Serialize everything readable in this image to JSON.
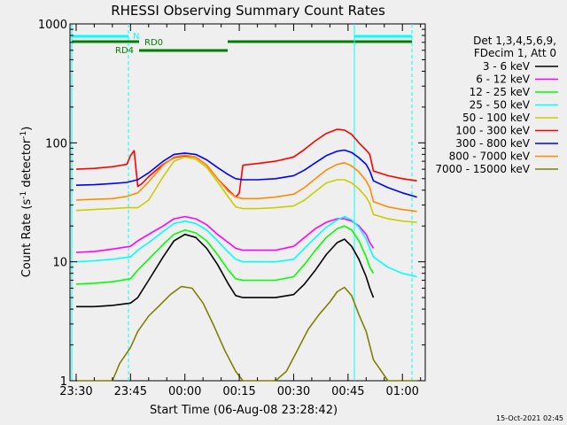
{
  "chart_data": {
    "type": "line",
    "title": "RHESSI Observing Summary Count Rates",
    "xlabel": "Start Time (06-Aug-08 23:28:42)",
    "ylabel": "Count Rate (s⁻¹ detector⁻¹)",
    "ylabel_main": "Count Rate (s",
    "ylabel_sup1": "-1",
    "ylabel_mid": " detector",
    "ylabel_sup2": "-1",
    "ylabel_end": ")",
    "y_scale": "log",
    "ylim": [
      1,
      1000
    ],
    "xlim_minutes": [
      -1.7,
      96.3
    ],
    "x_ticks": [
      {
        "label": "23:30",
        "min": 0
      },
      {
        "label": "23:45",
        "min": 15
      },
      {
        "label": "00:00",
        "min": 30
      },
      {
        "label": "00:15",
        "min": 45
      },
      {
        "label": "00:30",
        "min": 60
      },
      {
        "label": "00:45",
        "min": 75
      },
      {
        "label": "01:00",
        "min": 90
      }
    ],
    "y_ticks": [
      {
        "label": "1",
        "value": 1
      },
      {
        "label": "10",
        "value": 10
      },
      {
        "label": "100",
        "value": 100
      },
      {
        "label": "1000",
        "value": 1000
      }
    ],
    "legend_header": [
      "Det 1,3,4,5,6,9,",
      "FDecim 1, Att 0"
    ],
    "legend_position": "right",
    "series": [
      {
        "name": "3 - 6 keV",
        "color": "#000000",
        "x": [
          0,
          5,
          10,
          15,
          17,
          20,
          24,
          27,
          30,
          33,
          36,
          39,
          42,
          44,
          46,
          50,
          55,
          60,
          63,
          66,
          69,
          72,
          74,
          76,
          78,
          80,
          81,
          82
        ],
        "y": [
          4.2,
          4.2,
          4.3,
          4.5,
          5,
          7,
          11,
          15,
          17,
          16,
          13,
          9.5,
          6.5,
          5.2,
          5.0,
          5.0,
          5.0,
          5.3,
          6.5,
          8.5,
          11.5,
          14.5,
          15.5,
          13.5,
          10.5,
          7.5,
          6,
          5
        ]
      },
      {
        "name": "6 - 12 keV",
        "color": "#ff00ff",
        "x": [
          0,
          5,
          10,
          15,
          17,
          20,
          24,
          27,
          30,
          33,
          36,
          39,
          42,
          44,
          46,
          50,
          55,
          60,
          63,
          66,
          69,
          72,
          74,
          76,
          78,
          80,
          81,
          82
        ],
        "y": [
          12,
          12.2,
          12.8,
          13.5,
          15,
          17,
          20,
          23,
          24,
          23,
          20.5,
          17,
          14.5,
          13,
          12.5,
          12.5,
          12.5,
          13.5,
          16,
          19,
          21.5,
          23,
          23,
          22,
          20,
          17,
          14.5,
          13
        ]
      },
      {
        "name": "12 - 25 keV",
        "color": "#00ff00",
        "x": [
          0,
          5,
          10,
          15,
          17,
          20,
          24,
          27,
          30,
          33,
          36,
          39,
          42,
          44,
          46,
          50,
          55,
          60,
          63,
          66,
          69,
          72,
          74,
          76,
          78,
          80,
          81,
          82
        ],
        "y": [
          6.5,
          6.6,
          6.8,
          7.2,
          8.5,
          10.5,
          14,
          17,
          18.5,
          17.5,
          15,
          11.5,
          8.5,
          7.2,
          7.0,
          7.0,
          7.0,
          7.5,
          9.5,
          12.5,
          16,
          19,
          20,
          18.5,
          15,
          11,
          9,
          8
        ]
      },
      {
        "name": "25 - 50 keV",
        "color": "#00ffff",
        "x": [
          0,
          5,
          10,
          15,
          17,
          20,
          24,
          27,
          30,
          33,
          36,
          39,
          42,
          44,
          46,
          50,
          55,
          60,
          63,
          66,
          69,
          72,
          74,
          76,
          78,
          80,
          81,
          82,
          86,
          90,
          94
        ],
        "y": [
          10,
          10.2,
          10.5,
          11,
          12.5,
          14.5,
          18,
          21,
          22,
          21,
          18.5,
          15,
          12,
          10.5,
          10,
          10,
          10,
          10.5,
          13,
          16,
          19.5,
          22.5,
          24,
          22.5,
          19.5,
          15.5,
          13,
          11,
          9,
          8,
          7.5
        ]
      },
      {
        "name": "50 - 100 keV",
        "color": "#cccc00",
        "x": [
          0,
          5,
          10,
          14,
          17,
          20,
          24,
          27,
          30,
          33,
          36,
          39,
          42,
          44,
          46,
          50,
          55,
          60,
          63,
          66,
          69,
          72,
          74,
          76,
          78,
          80,
          81,
          82,
          86,
          90,
          94
        ],
        "y": [
          27,
          27.5,
          28,
          28.5,
          28.5,
          33,
          52,
          70,
          76,
          73,
          62,
          47,
          35,
          29,
          28,
          28,
          28.5,
          29.5,
          33,
          39,
          46,
          49,
          49,
          46,
          41,
          35,
          31,
          25,
          23,
          22,
          21.5
        ]
      },
      {
        "name": "100 - 300 keV",
        "color": "#ff0000",
        "x": [
          0,
          5,
          10,
          14,
          15,
          16,
          17,
          18,
          20,
          24,
          27,
          30,
          33,
          36,
          39,
          42,
          44,
          45,
          46,
          50,
          55,
          60,
          63,
          66,
          69,
          72,
          74,
          76,
          78,
          80,
          81,
          82,
          86,
          90,
          94
        ],
        "y": [
          60,
          61,
          63,
          66,
          78,
          86,
          43,
          45,
          52,
          66,
          75,
          78,
          76,
          65,
          50,
          40,
          35,
          38,
          65,
          67,
          70,
          76,
          88,
          104,
          120,
          130,
          128,
          118,
          100,
          87,
          80,
          58,
          53,
          50,
          48
        ]
      },
      {
        "name": "300 - 800 keV",
        "color": "#0000ff",
        "x": [
          0,
          5,
          10,
          14,
          17,
          20,
          24,
          27,
          30,
          33,
          36,
          39,
          42,
          44,
          46,
          50,
          55,
          60,
          63,
          66,
          69,
          72,
          74,
          76,
          78,
          80,
          81,
          82,
          86,
          90,
          94
        ],
        "y": [
          44,
          44.5,
          45.5,
          46.5,
          49,
          56,
          70,
          80,
          82,
          80,
          72,
          62,
          54,
          50,
          49,
          49,
          50,
          53,
          59,
          68,
          78,
          85,
          87,
          83,
          75,
          66,
          58,
          48,
          42,
          38,
          35
        ]
      },
      {
        "name": "800 - 7000 keV",
        "color": "#ff8c00",
        "x": [
          0,
          5,
          10,
          14,
          17,
          20,
          24,
          27,
          30,
          33,
          36,
          39,
          42,
          44,
          46,
          50,
          55,
          60,
          63,
          66,
          69,
          72,
          74,
          76,
          78,
          80,
          81,
          82,
          86,
          90,
          94
        ],
        "y": [
          33,
          33.5,
          34,
          35.5,
          38,
          47,
          65,
          76,
          79,
          76,
          65,
          50,
          39,
          35,
          34,
          34,
          35,
          37,
          42,
          50,
          59,
          66,
          68,
          64,
          57,
          48,
          42,
          32,
          29,
          27.5,
          26.5
        ]
      },
      {
        "name": "7000 - 15000 keV",
        "color": "#808000",
        "x": [
          0,
          5,
          10,
          12,
          15,
          17,
          20,
          23,
          26,
          29,
          32,
          35,
          38,
          41,
          44,
          46,
          49,
          52,
          55,
          58,
          61,
          64,
          67,
          70,
          72,
          74,
          76,
          78,
          80,
          82,
          86,
          90,
          94
        ],
        "y": [
          1,
          1,
          1,
          1.4,
          1.9,
          2.6,
          3.5,
          4.3,
          5.3,
          6.2,
          6.0,
          4.5,
          2.9,
          1.8,
          1.2,
          1,
          1,
          1,
          1,
          1.2,
          1.8,
          2.7,
          3.6,
          4.6,
          5.6,
          6.1,
          5.2,
          3.6,
          2.6,
          1.5,
          1,
          1,
          1
        ]
      }
    ],
    "annotations": {
      "n_label": "N",
      "rd0_label": "RD0",
      "rd4_label": "RD4"
    }
  },
  "footer_timestamp": "15-Oct-2021 02:45"
}
